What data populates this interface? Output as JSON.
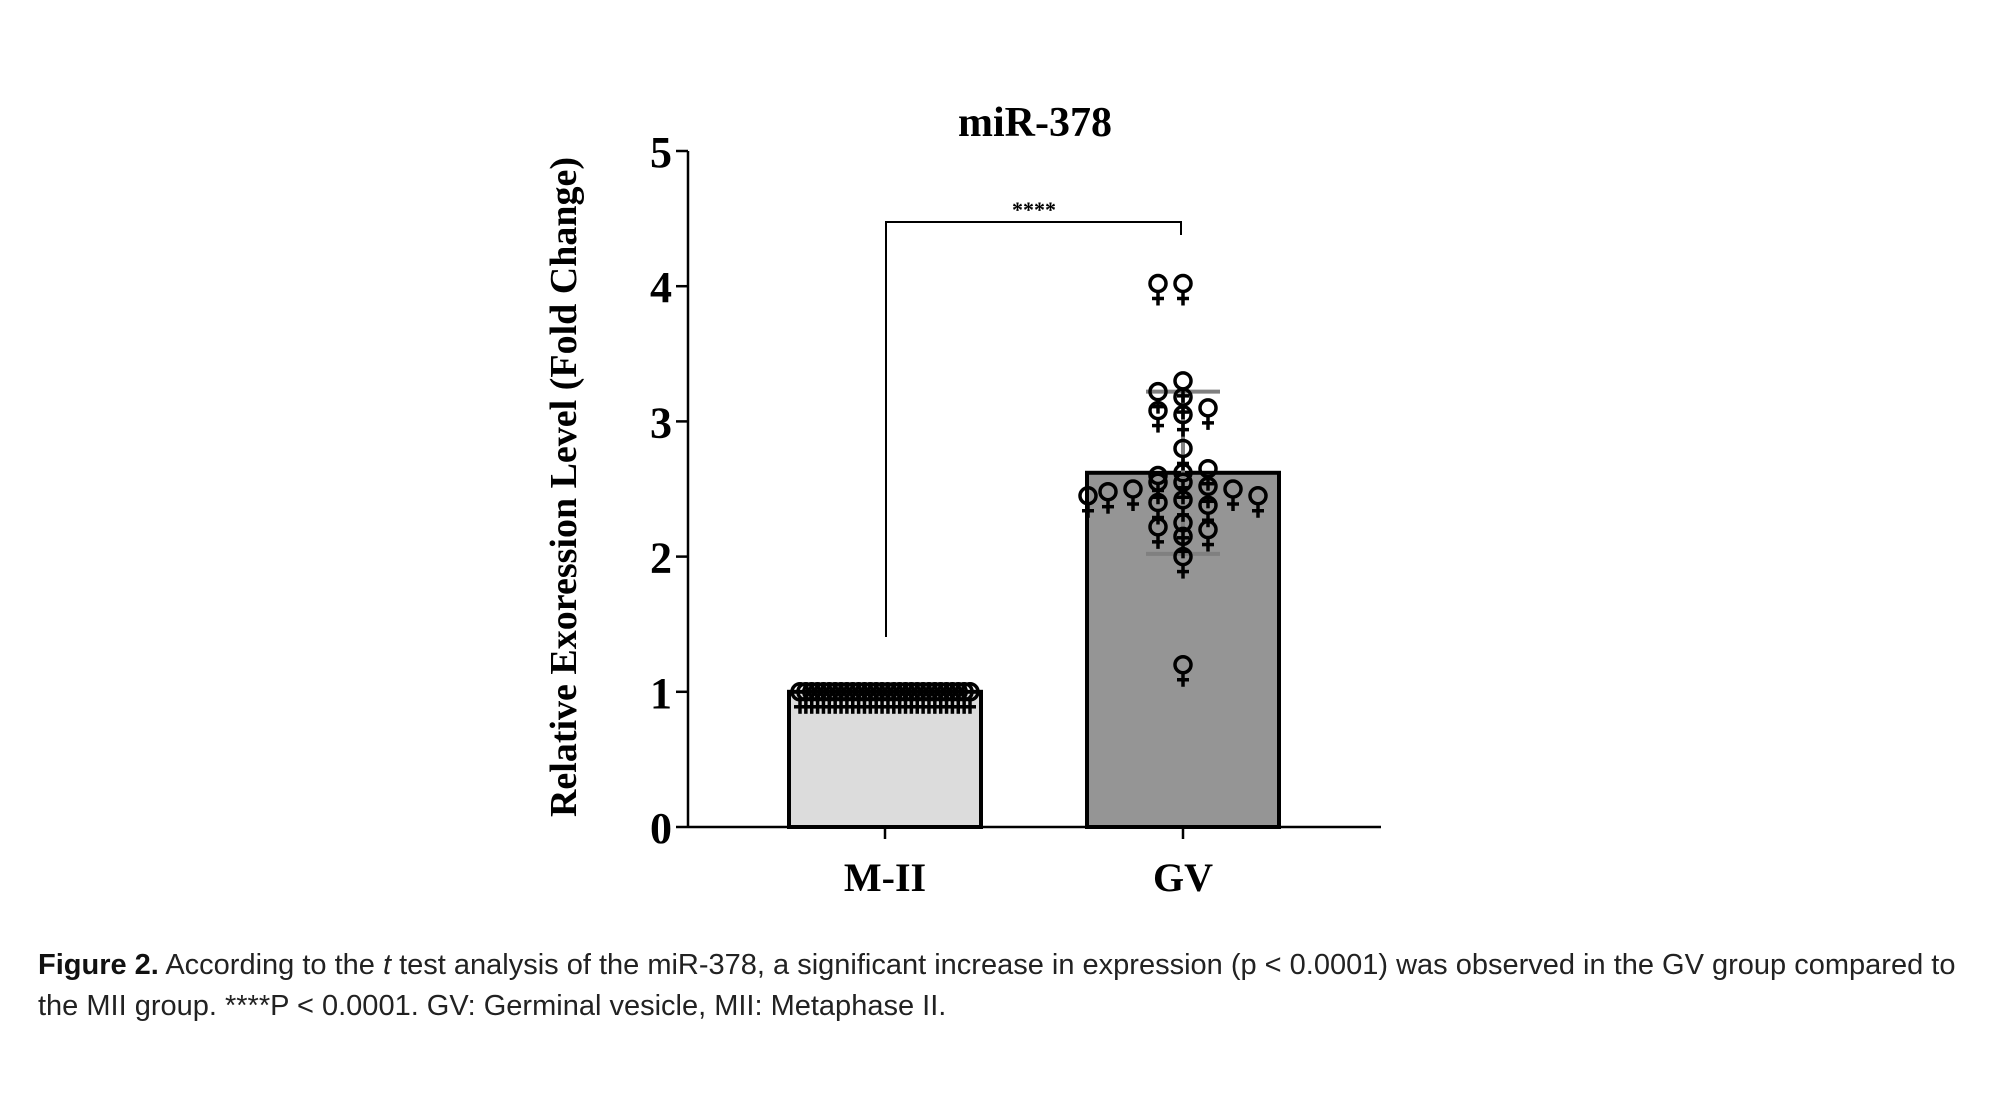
{
  "chart_data": {
    "type": "bar",
    "title": "miR-378",
    "ylabel": "Relative Exoression Level (Fold Change)",
    "xlabel": "",
    "ylim": [
      0,
      5
    ],
    "yticks": [
      "0",
      "1",
      "2",
      "3",
      "4",
      "5"
    ],
    "categories": [
      "M-II",
      "GV"
    ],
    "values": [
      1.0,
      2.62
    ],
    "error_sd": [
      0,
      0.6
    ],
    "bar_colors": [
      "#dcdcdc",
      "#959595"
    ],
    "points": [
      [
        1,
        1,
        1,
        1,
        1,
        1,
        1,
        1,
        1,
        1,
        1,
        1,
        1,
        1,
        1,
        1,
        1,
        1,
        1,
        1,
        1,
        1,
        1,
        1,
        1,
        1,
        1,
        1,
        1,
        1
      ],
      [
        4.02,
        4.02,
        3.3,
        3.18,
        3.22,
        3.08,
        3.1,
        3.05,
        2.8,
        2.62,
        2.6,
        2.65,
        2.55,
        2.55,
        2.52,
        2.5,
        2.5,
        2.48,
        2.45,
        2.45,
        2.42,
        2.4,
        2.38,
        2.25,
        2.22,
        2.2,
        2.15,
        2.0,
        1.2
      ]
    ],
    "significance": {
      "label": "****",
      "between": [
        "M-II",
        "GV"
      ]
    }
  },
  "caption": {
    "label": "Figure 2.",
    "part1": "According to the ",
    "italic": "t",
    "part2": " test analysis of the miR-378, a significant increase in expression (p < 0.0001) was observed in the GV group compared to the MII group. ****P < 0.0001. GV: Germinal vesicle, MII: Metaphase II."
  }
}
